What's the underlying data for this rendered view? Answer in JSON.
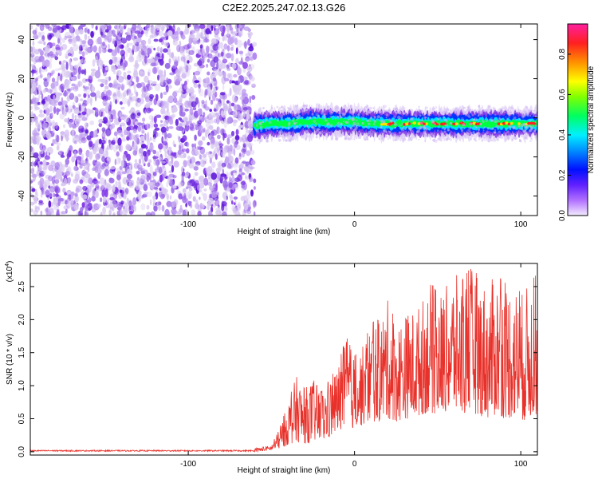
{
  "chart_data": [
    {
      "type": "heatmap",
      "title": "C2E2.2025.247.02.13.G26",
      "xlabel": "Height of straight line (km)",
      "ylabel": "Frequency (Hz)",
      "xlim": [
        -195,
        110
      ],
      "ylim": [
        -50,
        48
      ],
      "xticks": [
        -100,
        0,
        100
      ],
      "yticks": [
        -40,
        -20,
        0,
        20,
        40
      ],
      "noise_region_x": [
        -195,
        -60
      ],
      "signal_onset_x": -60,
      "signal_centerline": {
        "x": [
          -60,
          -50,
          -40,
          -30,
          -20,
          -10,
          0,
          10,
          20,
          30,
          40,
          50,
          60,
          70,
          80,
          90,
          100,
          110
        ],
        "freq_hz": [
          -4,
          -3,
          -3,
          -2,
          -2,
          -2,
          -2,
          -3,
          -3,
          -3,
          -3,
          -3,
          -3,
          -3,
          -3,
          -3,
          -3,
          -3
        ]
      },
      "colorbar": {
        "label": "Normalized spectral amplitude",
        "range": [
          0.0,
          0.95
        ],
        "ticks": [
          0.0,
          0.2,
          0.4,
          0.6,
          0.8
        ]
      },
      "colors": {
        "low": "#d8c8f0",
        "mid_low": "#7b30e6",
        "mid": "#0033ff",
        "cyan": "#00e0ff",
        "green": "#00ff40",
        "yellow": "#ffe000",
        "high": "#ff2020"
      }
    },
    {
      "type": "line",
      "xlabel": "Height of straight line (km)",
      "ylabel": "SNR (10 * v/v)",
      "scale_note": "(x10",
      "scale_exp": "4",
      "scale_close": ")",
      "xlim": [
        -195,
        110
      ],
      "ylim": [
        -0.05,
        2.85
      ],
      "xticks": [
        -100,
        0,
        100
      ],
      "yticks": [
        0.0,
        0.5,
        1.0,
        1.5,
        2.0,
        2.5
      ],
      "series": [
        {
          "name": "SNR",
          "color": "#e8312a",
          "envelope_x": [
            -195,
            -60,
            -50,
            -45,
            -40,
            -35,
            -30,
            -25,
            -20,
            -15,
            -10,
            -5,
            0,
            5,
            10,
            15,
            20,
            25,
            30,
            35,
            40,
            45,
            50,
            55,
            60,
            65,
            70,
            75,
            80,
            85,
            90,
            95,
            100,
            105,
            110
          ],
          "envelope_max": [
            0.03,
            0.05,
            0.1,
            0.35,
            0.75,
            1.15,
            0.95,
            1.1,
            0.9,
            1.1,
            1.3,
            1.75,
            1.45,
            1.6,
            1.95,
            2.0,
            2.3,
            1.95,
            2.1,
            2.15,
            2.25,
            2.6,
            2.4,
            2.5,
            2.7,
            2.6,
            2.8,
            2.65,
            2.5,
            2.7,
            2.55,
            2.6,
            2.4,
            2.55,
            2.7
          ],
          "envelope_min": [
            0.0,
            0.0,
            0.02,
            0.05,
            0.1,
            0.15,
            0.12,
            0.15,
            0.15,
            0.2,
            0.3,
            0.35,
            0.35,
            0.4,
            0.45,
            0.45,
            0.5,
            0.45,
            0.5,
            0.5,
            0.55,
            0.6,
            0.55,
            0.6,
            0.6,
            0.55,
            0.6,
            0.55,
            0.5,
            0.55,
            0.5,
            0.5,
            0.45,
            0.5,
            0.55
          ],
          "points_per_km": 5
        }
      ]
    }
  ]
}
